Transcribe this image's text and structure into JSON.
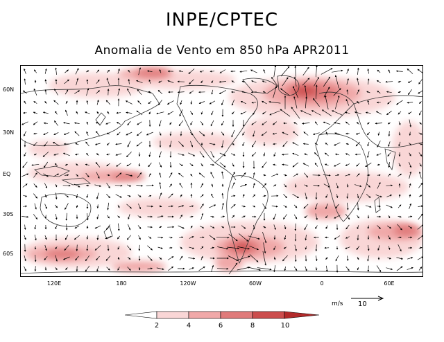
{
  "header": {
    "title": "INPE/CPTEC",
    "subtitle": "Anomalia de Vento em 850 hPa APR2011"
  },
  "map": {
    "projection": "cylindrical",
    "central_longitude": 0,
    "lat_ticks": [
      "60N",
      "30N",
      "EQ",
      "30S",
      "60S"
    ],
    "lon_ticks": [
      "120E",
      "180",
      "120W",
      "60W",
      "0",
      "60E"
    ],
    "field": "850 hPa wind anomaly (shaded speed, vectors)"
  },
  "reference_vector": {
    "unit": "m/s",
    "value": "10"
  },
  "colorbar": {
    "levels": [
      "2",
      "4",
      "6",
      "8",
      "10"
    ],
    "colors": [
      "#ffffff",
      "#f9d6d6",
      "#f0a8a8",
      "#e07b7b",
      "#cc4d4d",
      "#b22a2a"
    ]
  }
}
